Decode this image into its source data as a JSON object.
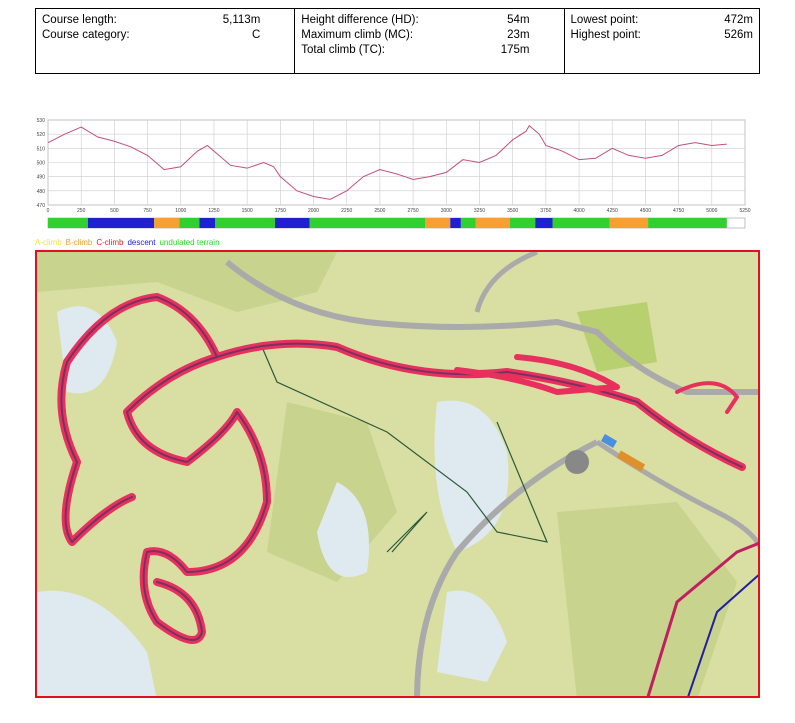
{
  "stats": [
    {
      "rows": [
        [
          "Course length:",
          "5,113m"
        ],
        [
          "Course category:",
          "C"
        ]
      ]
    },
    {
      "rows": [
        [
          "Height difference (HD):",
          "54m"
        ],
        [
          "Maximum climb (MC):",
          "23m"
        ],
        [
          "Total climb (TC):",
          "175m"
        ]
      ]
    },
    {
      "rows": [
        [
          "Lowest point:",
          "472m"
        ],
        [
          "Highest point:",
          "526m"
        ]
      ]
    }
  ],
  "chart_data": {
    "type": "line",
    "x": [
      0,
      125,
      250,
      375,
      500,
      625,
      750,
      875,
      1000,
      1125,
      1200,
      1250,
      1375,
      1500,
      1625,
      1700,
      1750,
      1875,
      2000,
      2125,
      2250,
      2375,
      2500,
      2625,
      2750,
      2875,
      3000,
      3125,
      3250,
      3375,
      3500,
      3600,
      3625,
      3700,
      3750,
      3875,
      4000,
      4125,
      4250,
      4375,
      4500,
      4625,
      4750,
      4875,
      5000,
      5113
    ],
    "series": [
      {
        "color": "#c0507a",
        "values": [
          514,
          520,
          525,
          518,
          515,
          511,
          505,
          495,
          497,
          508,
          512,
          508,
          498,
          496,
          500,
          497,
          490,
          480,
          476,
          474,
          480,
          490,
          495,
          492,
          488,
          490,
          493,
          502,
          500,
          505,
          516,
          522,
          526,
          520,
          512,
          508,
          502,
          503,
          510,
          505,
          503,
          505,
          512,
          514,
          512,
          513
        ]
      }
    ],
    "xlim": [
      0,
      5250
    ],
    "ylim": [
      470,
      530
    ],
    "xticks": [
      0,
      250,
      500,
      750,
      1000,
      1250,
      1500,
      1750,
      2000,
      2250,
      2500,
      2750,
      3000,
      3250,
      3500,
      3750,
      4000,
      4250,
      4500,
      4750,
      5000,
      5250
    ],
    "yticks": [
      470,
      480,
      490,
      500,
      510,
      520,
      530
    ],
    "grid": true
  },
  "terrain": {
    "legend": [
      {
        "label": "A-climb",
        "color": "#f0e040"
      },
      {
        "label": "B-climb",
        "color": "#f5a030"
      },
      {
        "label": "C-climb",
        "color": "#e02020"
      },
      {
        "label": "descent",
        "color": "#2020d0"
      },
      {
        "label": "undulated terrain",
        "color": "#30d030"
      }
    ],
    "segments": [
      {
        "start": 0,
        "end": 300,
        "color": "#30d030"
      },
      {
        "start": 300,
        "end": 800,
        "color": "#2020d0"
      },
      {
        "start": 800,
        "end": 990,
        "color": "#f5a030"
      },
      {
        "start": 990,
        "end": 1140,
        "color": "#30d030"
      },
      {
        "start": 1140,
        "end": 1260,
        "color": "#2020d0"
      },
      {
        "start": 1260,
        "end": 1710,
        "color": "#30d030"
      },
      {
        "start": 1710,
        "end": 1970,
        "color": "#2020d0"
      },
      {
        "start": 1970,
        "end": 2840,
        "color": "#30d030"
      },
      {
        "start": 2840,
        "end": 3030,
        "color": "#f5a030"
      },
      {
        "start": 3030,
        "end": 3110,
        "color": "#2020d0"
      },
      {
        "start": 3110,
        "end": 3220,
        "color": "#30d030"
      },
      {
        "start": 3220,
        "end": 3480,
        "color": "#f5a030"
      },
      {
        "start": 3480,
        "end": 3670,
        "color": "#30d030"
      },
      {
        "start": 3670,
        "end": 3800,
        "color": "#2020d0"
      },
      {
        "start": 3800,
        "end": 4230,
        "color": "#30d030"
      },
      {
        "start": 4230,
        "end": 4520,
        "color": "#f5a030"
      },
      {
        "start": 4520,
        "end": 5113,
        "color": "#30d030"
      }
    ]
  }
}
